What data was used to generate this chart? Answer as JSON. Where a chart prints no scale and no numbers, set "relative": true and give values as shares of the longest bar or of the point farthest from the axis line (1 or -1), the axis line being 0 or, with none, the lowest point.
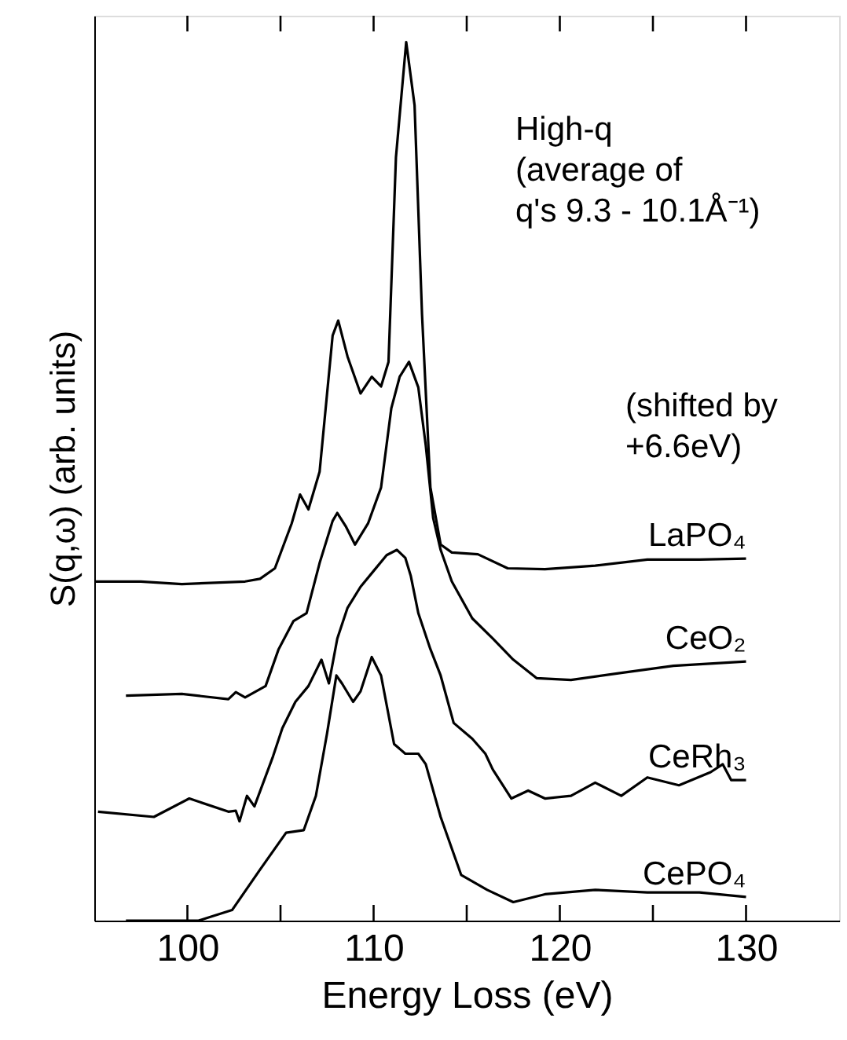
{
  "chart_data": {
    "type": "line",
    "relative": true,
    "xlabel": "Energy Loss (eV)",
    "ylabel": "S(q,ω) (arb. units)",
    "xlim": [
      95,
      135
    ],
    "xticks": [
      100,
      {
        "value": 105,
        "label": null
      },
      110,
      {
        "value": 115,
        "label": null
      },
      120,
      {
        "value": 125,
        "label": null
      },
      130
    ],
    "tick_labels": "x",
    "grid": false,
    "marker": "none",
    "line_style": "solid",
    "annotations": [
      "High-q\n(average of\nq's 9.3 - 10.1Å⁻¹)",
      "(shifted by\n+6.6eV)"
    ],
    "series": [
      {
        "name": "LaPO₄",
        "color": "#000000",
        "x": [
          95.0,
          97.5,
          99.7,
          103.1,
          103.9,
          104.7,
          105.6,
          106.05,
          106.5,
          107.1,
          107.8,
          108.1,
          108.6,
          109.3,
          109.9,
          110.4,
          110.8,
          111.2,
          111.75,
          112.2,
          112.6,
          113.05,
          113.6,
          114.2,
          115.6,
          117.2,
          119.2,
          121.9,
          124.7,
          127.5,
          130.0
        ],
        "values": [
          0.386,
          0.386,
          0.383,
          0.386,
          0.389,
          0.401,
          0.452,
          0.485,
          0.468,
          0.511,
          0.666,
          0.683,
          0.642,
          0.6,
          0.619,
          0.608,
          0.636,
          0.869,
          1.0,
          0.928,
          0.69,
          0.493,
          0.428,
          0.419,
          0.417,
          0.401,
          0.4,
          0.404,
          0.411,
          0.411,
          0.412
        ]
      },
      {
        "name": "CeO₂",
        "color": "#000000",
        "x": [
          96.7,
          99.7,
          102.2,
          102.6,
          103.1,
          104.2,
          104.9,
          105.7,
          106.4,
          107.1,
          107.8,
          108.05,
          108.5,
          109.0,
          109.7,
          110.4,
          110.95,
          111.4,
          111.9,
          112.4,
          112.8,
          113.2,
          113.6,
          114.2,
          115.3,
          116.4,
          117.5,
          118.75,
          120.6,
          123.3,
          126.1,
          130.0
        ],
        "values": [
          0.256,
          0.258,
          0.252,
          0.26,
          0.254,
          0.267,
          0.309,
          0.341,
          0.35,
          0.407,
          0.455,
          0.464,
          0.449,
          0.428,
          0.452,
          0.493,
          0.583,
          0.619,
          0.636,
          0.607,
          0.541,
          0.458,
          0.422,
          0.386,
          0.344,
          0.321,
          0.297,
          0.276,
          0.274,
          0.282,
          0.29,
          0.295
        ]
      },
      {
        "name": "CeRh₃",
        "color": "#000000",
        "x": [
          95.2,
          98.2,
          100.1,
          102.2,
          102.6,
          102.8,
          103.2,
          103.6,
          104.6,
          105.1,
          105.8,
          106.5,
          107.2,
          107.6,
          108.05,
          108.6,
          109.3,
          110.0,
          110.7,
          111.25,
          111.7,
          112.0,
          112.4,
          113.05,
          113.6,
          114.3,
          115.3,
          116.0,
          116.4,
          117.4,
          118.3,
          119.2,
          120.6,
          121.9,
          123.3,
          124.7,
          126.4,
          128.1,
          128.75,
          129.2,
          130.0
        ],
        "values": [
          0.124,
          0.118,
          0.139,
          0.124,
          0.125,
          0.113,
          0.142,
          0.13,
          0.187,
          0.219,
          0.249,
          0.267,
          0.297,
          0.27,
          0.321,
          0.356,
          0.38,
          0.398,
          0.416,
          0.422,
          0.413,
          0.392,
          0.35,
          0.309,
          0.279,
          0.225,
          0.207,
          0.19,
          0.172,
          0.139,
          0.148,
          0.139,
          0.142,
          0.157,
          0.142,
          0.163,
          0.154,
          0.169,
          0.178,
          0.16,
          0.16
        ]
      },
      {
        "name": "CePO₄",
        "color": "#000000",
        "x": [
          96.7,
          100.6,
          102.4,
          103.9,
          105.3,
          106.25,
          106.9,
          107.5,
          108.0,
          108.3,
          108.9,
          109.3,
          109.9,
          110.4,
          111.1,
          111.7,
          112.4,
          112.8,
          113.6,
          114.7,
          116.1,
          117.5,
          119.2,
          121.9,
          124.7,
          127.5,
          130.0
        ],
        "values": [
          0.0,
          0.0,
          0.012,
          0.058,
          0.1,
          0.103,
          0.142,
          0.213,
          0.279,
          0.27,
          0.249,
          0.261,
          0.3,
          0.279,
          0.201,
          0.19,
          0.19,
          0.178,
          0.118,
          0.052,
          0.035,
          0.021,
          0.03,
          0.035,
          0.032,
          0.032,
          0.027
        ]
      }
    ]
  }
}
